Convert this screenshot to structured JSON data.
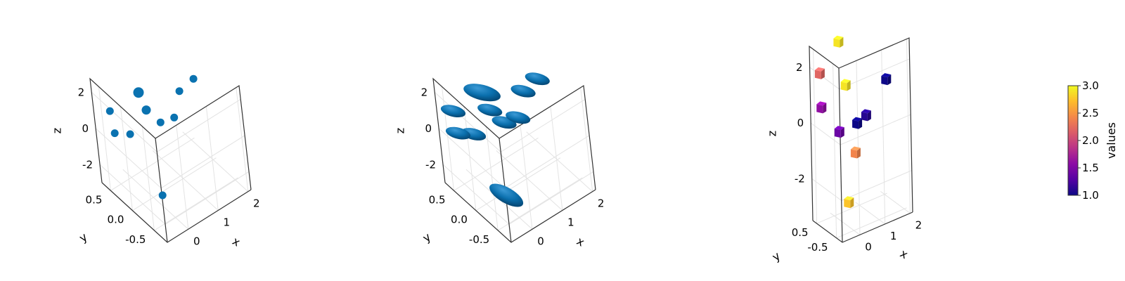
{
  "chart_data": [
    {
      "type": "scatter",
      "marker": "circle",
      "color": "#0a72b0",
      "xlabel": "x",
      "ylabel": "y",
      "zlabel": "z",
      "xticks": [
        "0",
        "1",
        "2"
      ],
      "yticks": [
        "0.5",
        "0.0",
        "-0.5"
      ],
      "zticks": [
        "-2",
        "0",
        "2"
      ],
      "points": [
        {
          "x": -0.5,
          "y": 0.45,
          "z": 1.3
        },
        {
          "x": -0.55,
          "y": 0.35,
          "z": 0.35
        },
        {
          "x": 0.05,
          "y": 0.45,
          "z": -0.55
        },
        {
          "x": 0.4,
          "y": 0.4,
          "z": 1.5
        },
        {
          "x": 0.7,
          "y": 0.5,
          "z": 0.0
        },
        {
          "x": 1.1,
          "y": 0.5,
          "z": -1.1
        },
        {
          "x": 1.3,
          "y": 0.3,
          "z": -0.6
        },
        {
          "x": 1.8,
          "y": 0.5,
          "z": -0.1
        },
        {
          "x": 2.1,
          "y": 0.35,
          "z": 0.6
        },
        {
          "x": 0.05,
          "y": -0.2,
          "z": -2.5
        }
      ]
    },
    {
      "type": "scatter",
      "marker": "ellipsoid",
      "color": "#0a72b0",
      "xlabel": "x",
      "ylabel": "y",
      "zlabel": "z",
      "xticks": [
        "0",
        "1",
        "2"
      ],
      "yticks": [
        "0.5",
        "0.0",
        "-0.5"
      ],
      "zticks": [
        "-2",
        "0",
        "2"
      ],
      "points": [
        {
          "x": -0.5,
          "y": 0.45,
          "z": 1.3
        },
        {
          "x": -0.55,
          "y": 0.35,
          "z": 0.35
        },
        {
          "x": 0.05,
          "y": 0.45,
          "z": -0.55
        },
        {
          "x": 0.4,
          "y": 0.4,
          "z": 1.5
        },
        {
          "x": 0.7,
          "y": 0.5,
          "z": 0.0
        },
        {
          "x": 1.1,
          "y": 0.5,
          "z": -1.1
        },
        {
          "x": 1.3,
          "y": 0.3,
          "z": -0.6
        },
        {
          "x": 1.8,
          "y": 0.5,
          "z": -0.1
        },
        {
          "x": 2.1,
          "y": 0.35,
          "z": 0.6
        },
        {
          "x": 0.05,
          "y": -0.2,
          "z": -2.5
        }
      ]
    },
    {
      "type": "scatter",
      "marker": "cube",
      "colormap": "plasma",
      "colorbar": {
        "label": "values",
        "min": 1.0,
        "max": 3.0,
        "ticks": [
          "1.0",
          "1.5",
          "2.0",
          "2.5",
          "3.0"
        ]
      },
      "xlabel": "x",
      "ylabel": "y",
      "zlabel": "z",
      "xticks": [
        "0",
        "1",
        "2"
      ],
      "yticks": [
        "0.5",
        "-0.5"
      ],
      "zticks": [
        "-2",
        "0",
        "2"
      ],
      "points": [
        {
          "x": -0.5,
          "y": 0.45,
          "z": 1.8,
          "value": 2.2
        },
        {
          "x": 0.3,
          "y": 0.5,
          "z": 2.6,
          "value": 2.9
        },
        {
          "x": -0.5,
          "y": 0.4,
          "z": 0.6,
          "value": 1.6
        },
        {
          "x": 0.55,
          "y": 0.5,
          "z": 0.95,
          "value": 2.9
        },
        {
          "x": 2.0,
          "y": 0.3,
          "z": 0.7,
          "value": 1.0
        },
        {
          "x": 0.15,
          "y": 0.35,
          "z": -0.5,
          "value": 1.4
        },
        {
          "x": 0.9,
          "y": 0.4,
          "z": -0.5,
          "value": 1.0
        },
        {
          "x": 1.3,
          "y": 0.45,
          "z": -0.4,
          "value": 1.1
        },
        {
          "x": 0.7,
          "y": 0.25,
          "z": -1.4,
          "value": 2.4
        },
        {
          "x": 0.05,
          "y": -0.2,
          "z": -2.7,
          "value": 2.75
        }
      ]
    }
  ]
}
